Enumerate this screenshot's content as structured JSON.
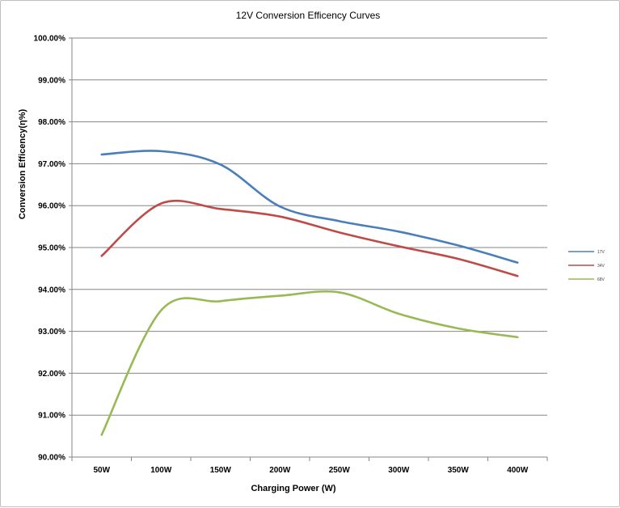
{
  "chart_data": {
    "type": "line",
    "title": "12V  Conversion Efficency Curves",
    "xlabel": "Charging  Power  (W)",
    "ylabel": "Conversion Efficency(η%)",
    "categories": [
      "50W",
      "100W",
      "150W",
      "200W",
      "250W",
      "300W",
      "350W",
      "400W"
    ],
    "ylim": [
      90,
      100
    ],
    "yticks": [
      "90.00%",
      "91.00%",
      "92.00%",
      "93.00%",
      "94.00%",
      "95.00%",
      "96.00%",
      "97.00%",
      "98.00%",
      "99.00%",
      "100.00%"
    ],
    "grid": true,
    "legend_position": "right",
    "series": [
      {
        "name": "17V",
        "color": "#4a7ebb",
        "values": [
          97.22,
          97.3,
          96.98,
          95.98,
          95.63,
          95.38,
          95.05,
          94.64
        ]
      },
      {
        "name": "34V",
        "color": "#be4b48",
        "values": [
          94.8,
          96.05,
          95.92,
          95.74,
          95.36,
          95.03,
          94.73,
          94.32
        ]
      },
      {
        "name": "68V",
        "color": "#98b954",
        "values": [
          90.53,
          93.5,
          93.72,
          93.85,
          93.93,
          93.42,
          93.07,
          92.86
        ]
      }
    ]
  }
}
